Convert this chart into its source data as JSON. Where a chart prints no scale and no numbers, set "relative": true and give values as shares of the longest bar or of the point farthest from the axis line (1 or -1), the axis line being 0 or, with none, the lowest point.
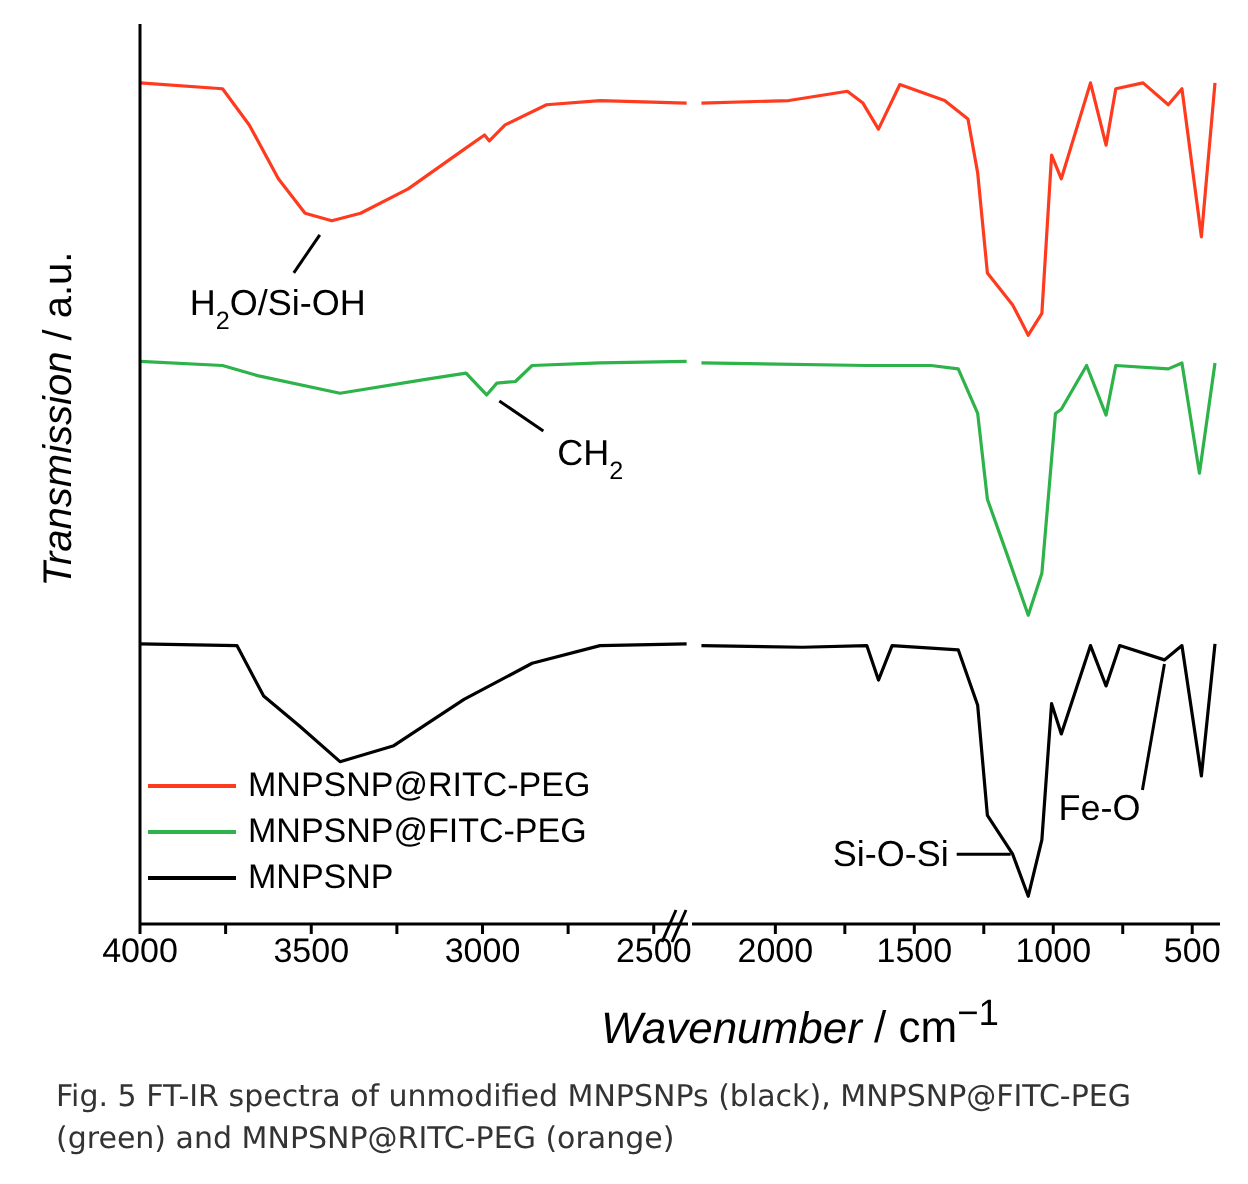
{
  "chart_data": [
    {
      "type": "line",
      "relative": true,
      "ylabel": "Transmission / a.u.",
      "xlim": [
        4000,
        2400
      ],
      "xticks": [
        4000,
        {
          "value": 3750,
          "label": null
        },
        3500,
        {
          "value": 3250,
          "label": null
        },
        3000,
        {
          "value": 2750,
          "label": null
        },
        2500
      ],
      "legend": "bottom left",
      "annotations": [
        {
          "text": "H$_{2}$O/Si-OH",
          "x": 3440,
          "y": 0.836
        },
        {
          "text": "CH$_{2}$",
          "x": 2980,
          "y": 0.629
        }
      ],
      "series": [
        {
          "name": "MNPSNP@RITC-PEG",
          "color": "#ff3b1f",
          "x": [
            4000,
            3759,
            3681,
            3596,
            3518,
            3440,
            3356,
            3217,
            3054,
            2994,
            2980,
            2934,
            2813,
            2657,
            2404
          ],
          "values": [
            1.0,
            0.993,
            0.95,
            0.886,
            0.845,
            0.836,
            0.845,
            0.874,
            0.921,
            0.938,
            0.931,
            0.95,
            0.974,
            0.979,
            0.976
          ]
        },
        {
          "name": "MNPSNP@FITC-PEG",
          "color": "#2db34a",
          "x": [
            4000,
            3759,
            3657,
            3416,
            3157,
            3048,
            2988,
            2958,
            2904,
            2855,
            2657,
            2404
          ],
          "values": [
            0.669,
            0.664,
            0.652,
            0.631,
            0.648,
            0.655,
            0.629,
            0.643,
            0.645,
            0.664,
            0.667,
            0.669
          ]
        },
        {
          "name": "MNPSNP",
          "color": "#000000",
          "x": [
            4000,
            3717,
            3639,
            3536,
            3416,
            3259,
            3054,
            2855,
            2657,
            2404
          ],
          "values": [
            0.333,
            0.331,
            0.271,
            0.236,
            0.193,
            0.212,
            0.267,
            0.31,
            0.331,
            0.333
          ]
        }
      ]
    },
    {
      "type": "line",
      "relative": true,
      "xlabel": "Wavenumber / cm$^{−1}$",
      "xlim": [
        2300,
        400
      ],
      "xticks": [
        2000,
        {
          "value": 1750,
          "label": null
        },
        1500,
        {
          "value": 1250,
          "label": null
        },
        1000,
        {
          "value": 750,
          "label": null
        },
        500
      ],
      "annotations": [
        {
          "text": "Si-O-Si",
          "x": 1146,
          "y": 0.083
        },
        {
          "text": "Fe-O",
          "x": 600,
          "y": 0.314
        },
        "Fig. 5  FT-IR spectra of unmodified MNPSNPs (black), MNPSNP@FITC-PEG (green) and MNPSNP@RITC-PEG (orange)"
      ],
      "series": [
        {
          "color": "#ff3b1f",
          "x": [
            2266,
            1951,
            1741,
            1685,
            1629,
            1552,
            1391,
            1307,
            1272,
            1237,
            1146,
            1090,
            1041,
            1006,
            971,
            866,
            810,
            775,
            677,
            586,
            537,
            467,
            418
          ],
          "values": [
            0.976,
            0.979,
            0.99,
            0.976,
            0.945,
            0.998,
            0.979,
            0.957,
            0.893,
            0.774,
            0.736,
            0.7,
            0.726,
            0.914,
            0.886,
            1.0,
            0.926,
            0.993,
            1.0,
            0.974,
            0.993,
            0.817,
            1.0
          ]
        },
        {
          "color": "#2db34a",
          "x": [
            2266,
            1671,
            1440,
            1342,
            1272,
            1237,
            1167,
            1090,
            1041,
            992,
            971,
            880,
            810,
            775,
            586,
            537,
            474,
            418
          ],
          "values": [
            0.667,
            0.664,
            0.664,
            0.66,
            0.607,
            0.505,
            0.44,
            0.367,
            0.417,
            0.607,
            0.612,
            0.664,
            0.605,
            0.664,
            0.66,
            0.667,
            0.536,
            0.667
          ]
        },
        {
          "color": "#000000",
          "x": [
            2266,
            1902,
            1671,
            1629,
            1580,
            1342,
            1272,
            1237,
            1146,
            1090,
            1041,
            1006,
            971,
            866,
            810,
            761,
            600,
            537,
            467,
            418
          ],
          "values": [
            0.331,
            0.329,
            0.331,
            0.29,
            0.331,
            0.326,
            0.26,
            0.129,
            0.083,
            0.033,
            0.1,
            0.262,
            0.226,
            0.331,
            0.283,
            0.331,
            0.314,
            0.331,
            0.176,
            0.333
          ]
        }
      ]
    }
  ]
}
